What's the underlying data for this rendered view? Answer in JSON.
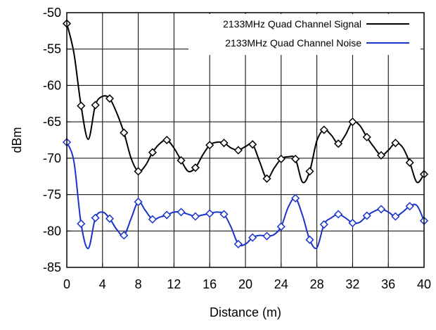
{
  "chart_data": {
    "type": "line",
    "title": "",
    "xlabel": "Distance (m)",
    "ylabel": "dBm",
    "xlim": [
      0,
      40
    ],
    "ylim": [
      -85,
      -50
    ],
    "xticks": [
      0,
      4,
      8,
      12,
      16,
      20,
      24,
      28,
      32,
      36,
      40
    ],
    "yticks": [
      -50,
      -55,
      -60,
      -65,
      -70,
      -75,
      -80,
      -85
    ],
    "grid": true,
    "legend_position": "top-right",
    "series": [
      {
        "name": "2133MHz Quad Channel Signal",
        "color": "#000000",
        "marker": "diamond",
        "x": [
          0,
          1.6,
          3.2,
          4.8,
          6.4,
          8,
          9.6,
          11.2,
          12.8,
          14.4,
          16,
          17.6,
          19.2,
          20.8,
          22.4,
          24,
          25.6,
          27.2,
          28.8,
          30.4,
          32,
          33.6,
          35.2,
          36.8,
          38.4,
          40
        ],
        "y": [
          -51.5,
          -62.8,
          -62.7,
          -61.8,
          -66.5,
          -71.8,
          -69.2,
          -67.5,
          -70.3,
          -71.3,
          -68.2,
          -67.9,
          -68.9,
          -68.1,
          -72.8,
          -70.1,
          -70.1,
          -71.8,
          -66.1,
          -68,
          -65,
          -67.1,
          -69.6,
          -67.9,
          -70.6,
          -72.2
        ],
        "curve_y": [
          -51.5,
          -55.6,
          -62.8,
          -67.4,
          -62.7,
          -61.5,
          -61.8,
          -63.8,
          -66.5,
          -70,
          -71.8,
          -71,
          -69.2,
          -68,
          -67.5,
          -68.6,
          -70.3,
          -71.8,
          -71.3,
          -69.6,
          -68.2,
          -67.8,
          -67.9,
          -68.6,
          -68.9,
          -68.4,
          -68.1,
          -70.5,
          -72.8,
          -71.4,
          -70.1,
          -69.8,
          -70.1,
          -73.3,
          -71.8,
          -67.6,
          -66.1,
          -66.8,
          -68,
          -66.8,
          -65,
          -65.5,
          -67.1,
          -68.5,
          -69.6,
          -68.9,
          -67.9,
          -68.5,
          -70.6,
          -73.3,
          -72.2
        ]
      },
      {
        "name": "2133MHz Quad Channel Noise",
        "color": "#1a33cc",
        "marker": "diamond",
        "x": [
          0,
          1.6,
          3.2,
          4.8,
          6.4,
          8,
          9.6,
          11.2,
          12.8,
          14.4,
          16,
          17.6,
          19.2,
          20.8,
          22.4,
          24,
          25.6,
          27.2,
          28.8,
          30.4,
          32,
          33.6,
          35.2,
          36.8,
          38.4,
          40
        ],
        "y": [
          -67.8,
          -79,
          -78.2,
          -78.3,
          -80.6,
          -76,
          -78.4,
          -77.8,
          -77.4,
          -78,
          -77.6,
          -77.7,
          -81.8,
          -80.9,
          -80.7,
          -79.4,
          -75.5,
          -81.2,
          -79.1,
          -77.7,
          -78.9,
          -77.9,
          -77,
          -78,
          -76.6,
          -78.6
        ],
        "curve_y": [
          -67.8,
          -70.5,
          -79,
          -82.4,
          -78.2,
          -77.4,
          -78.3,
          -79.8,
          -80.6,
          -78.3,
          -76,
          -77.2,
          -78.4,
          -78.1,
          -77.8,
          -77.4,
          -77.4,
          -77.7,
          -78,
          -77.8,
          -77.6,
          -77.4,
          -77.7,
          -79.5,
          -81.8,
          -81.8,
          -80.9,
          -80.6,
          -80.7,
          -80.5,
          -79.4,
          -76.7,
          -75.5,
          -77.9,
          -81.2,
          -82.3,
          -79.1,
          -78.2,
          -77.7,
          -78.2,
          -78.9,
          -78.8,
          -77.9,
          -77.3,
          -77,
          -77.4,
          -78,
          -77.4,
          -76.6,
          -76.5,
          -78.6
        ]
      }
    ]
  }
}
